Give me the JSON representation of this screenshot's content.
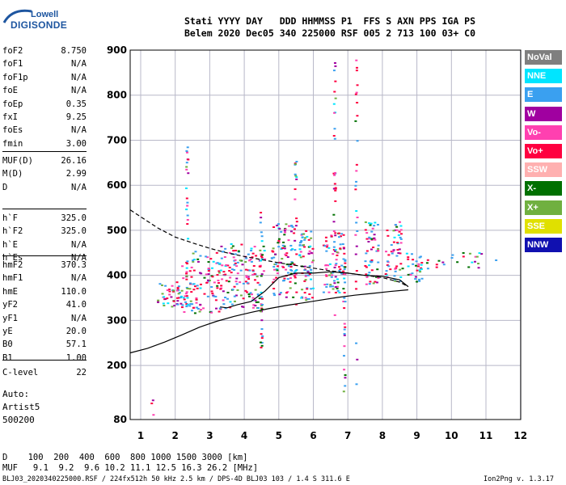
{
  "logo": {
    "top": "Lowell",
    "bottom": "DIGISONDE"
  },
  "header": {
    "line1": "Stati YYYY DAY   DDD HHMMSS P1  FFS S AXN PPS IGA PS",
    "line2": "Belem 2020 Dec05 340 225000 RSF 005 2 713 100 03+ C0"
  },
  "params_a": [
    {
      "label": "foF2",
      "value": "8.750"
    },
    {
      "label": "foF1",
      "value": "N/A"
    },
    {
      "label": "foF1p",
      "value": "N/A"
    },
    {
      "label": "foE",
      "value": "N/A"
    },
    {
      "label": "foEp",
      "value": "0.35"
    },
    {
      "label": "fxI",
      "value": "9.25"
    },
    {
      "label": "foEs",
      "value": "N/A"
    },
    {
      "label": "fmin",
      "value": "3.00"
    }
  ],
  "params_b": [
    {
      "label": "MUF(D)",
      "value": "26.16"
    },
    {
      "label": "M(D)",
      "value": "2.99"
    },
    {
      "label": "D",
      "value": "N/A"
    }
  ],
  "params_c": [
    {
      "label": "h`F",
      "value": "325.0"
    },
    {
      "label": "h`F2",
      "value": "325.0"
    },
    {
      "label": "h`E",
      "value": "N/A"
    },
    {
      "label": "h`Es",
      "value": "N/A"
    }
  ],
  "params_d": [
    {
      "label": "hmF2",
      "value": "370.3"
    },
    {
      "label": "hmF1",
      "value": "N/A"
    },
    {
      "label": "hmE",
      "value": "110.0"
    },
    {
      "label": "yF2",
      "value": "41.0"
    },
    {
      "label": "yF1",
      "value": "N/A"
    },
    {
      "label": "yE",
      "value": "20.0"
    },
    {
      "label": "B0",
      "value": "57.1"
    },
    {
      "label": "B1",
      "value": "1.00"
    }
  ],
  "params_e": [
    {
      "label": "C-level",
      "value": "22"
    }
  ],
  "auto": {
    "line1": "Auto:",
    "line2": "Artist5",
    "line3": "500200"
  },
  "legend": [
    {
      "label": "NoVal",
      "color": "#7f7f7f"
    },
    {
      "label": "NNE",
      "color": "#00e5ff"
    },
    {
      "label": "E",
      "color": "#3aa0f0"
    },
    {
      "label": "W",
      "color": "#a000a0"
    },
    {
      "label": "Vo-",
      "color": "#ff40b0"
    },
    {
      "label": "Vo+",
      "color": "#ff0040"
    },
    {
      "label": "SSW",
      "color": "#ffb0b0"
    },
    {
      "label": "X-",
      "color": "#007000"
    },
    {
      "label": "X+",
      "color": "#70b040"
    },
    {
      "label": "SSE",
      "color": "#e0e000"
    },
    {
      "label": "NNW",
      "color": "#1010b0"
    }
  ],
  "footer": {
    "line1": "D    100  200  400  600  800 1000 1500 3000 [km]",
    "line2": "MUF   9.1  9.2  9.6 10.2 11.1 12.5 16.3 26.2 [MHz]",
    "line3": "BLJ03_2020340225000.RSF / 224fx512h 50 kHz 2.5 km / DPS-4D BLJ03 103 / 1.4 S 311.6 E",
    "version": "Ion2Png v. 1.3.17"
  },
  "chart_data": {
    "type": "scatter",
    "title": "",
    "xlabel": "",
    "ylabel": "",
    "xlim": [
      0.7,
      12.1
    ],
    "ylim": [
      80,
      900
    ],
    "x_ticks": [
      1,
      2,
      3,
      4,
      5,
      6,
      7,
      8,
      9,
      10,
      11,
      12
    ],
    "y_ticks": [
      80,
      200,
      300,
      400,
      500,
      600,
      700,
      800,
      900
    ],
    "grid": true,
    "series": [
      {
        "name": "profile",
        "style": "solid",
        "x": [
          0.7,
          1.2,
          1.7,
          2.2,
          2.7,
          3.2,
          3.7,
          4.2,
          4.7,
          5.2,
          5.7,
          6.2,
          6.7,
          7.2,
          7.7,
          8.2,
          8.75
        ],
        "y": [
          228,
          238,
          252,
          268,
          285,
          298,
          309,
          318,
          326,
          333,
          339,
          345,
          351,
          356,
          360,
          364,
          368
        ]
      },
      {
        "name": "f_trace",
        "style": "solid",
        "x": [
          3.3,
          3.5,
          3.8,
          4.2,
          4.6,
          5.0,
          5.5,
          6.0,
          6.5,
          7.0,
          7.5,
          8.0,
          8.5,
          8.75
        ],
        "y": [
          330,
          328,
          335,
          342,
          365,
          395,
          405,
          405,
          408,
          405,
          400,
          398,
          390,
          375
        ]
      },
      {
        "name": "x_trace",
        "style": "dashed",
        "x": [
          0.7,
          1.0,
          1.5,
          2.0,
          2.5,
          3.0,
          3.5,
          4.0,
          4.5,
          5.0,
          5.5,
          6.0,
          6.5,
          7.0,
          7.5,
          8.0,
          8.5,
          8.75
        ],
        "y": [
          545,
          530,
          505,
          485,
          472,
          460,
          450,
          442,
          435,
          428,
          422,
          416,
          410,
          405,
          400,
          395,
          385,
          375
        ]
      }
    ],
    "echo_clusters": [
      {
        "x": [
          1.5,
          2.2
        ],
        "y": [
          325,
          385
        ],
        "n": 45
      },
      {
        "x": [
          2.2,
          3.3
        ],
        "y": [
          315,
          455
        ],
        "n": 110
      },
      {
        "x": [
          3.3,
          4.6
        ],
        "y": [
          325,
          470
        ],
        "n": 150
      },
      {
        "x": [
          4.8,
          5.5
        ],
        "y": [
          350,
          520
        ],
        "n": 100
      },
      {
        "x": [
          5.6,
          6.0
        ],
        "y": [
          345,
          500
        ],
        "n": 70
      },
      {
        "x": [
          6.3,
          6.9
        ],
        "y": [
          360,
          500
        ],
        "n": 70
      },
      {
        "x": [
          7.5,
          7.9
        ],
        "y": [
          380,
          520
        ],
        "n": 55
      },
      {
        "x": [
          8.1,
          8.6
        ],
        "y": [
          385,
          520
        ],
        "n": 55
      },
      {
        "x": [
          8.7,
          9.2
        ],
        "y": [
          385,
          450
        ],
        "n": 30
      },
      {
        "x": [
          9.2,
          11.3
        ],
        "y": [
          415,
          450
        ],
        "n": 24
      }
    ],
    "echo_columns": [
      {
        "x": 2.35,
        "y": [
          330,
          690
        ],
        "n": 30
      },
      {
        "x": 4.5,
        "y": [
          230,
          550
        ],
        "n": 24
      },
      {
        "x": 5.5,
        "y": [
          320,
          660
        ],
        "n": 20
      },
      {
        "x": 6.62,
        "y": [
          310,
          880
        ],
        "n": 34
      },
      {
        "x": 6.9,
        "y": [
          110,
          470
        ],
        "n": 30
      },
      {
        "x": 7.25,
        "y": [
          100,
          895
        ],
        "n": 28
      },
      {
        "x": 1.35,
        "y": [
          80,
          130
        ],
        "n": 3
      }
    ]
  }
}
